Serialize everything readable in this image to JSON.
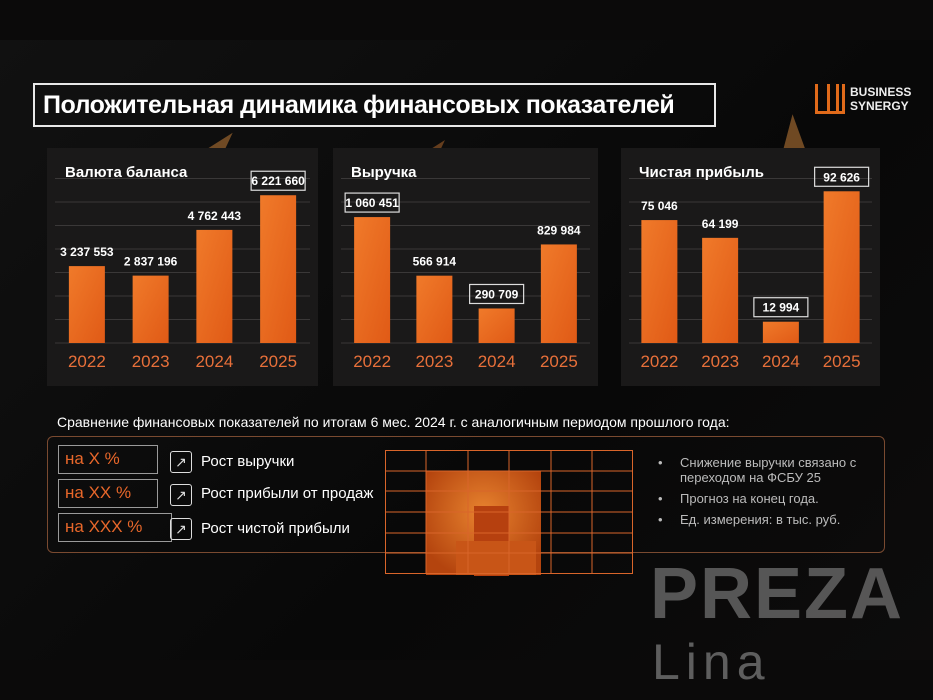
{
  "title": "Положительная динамика финансовых показателей",
  "logo": {
    "line1": "BUSINESS",
    "line2": "SYNERGY"
  },
  "colors": {
    "bar": "#e05a16",
    "bar_light": "#f07a2a",
    "year_label": "#e8703a",
    "accent": "#e8672a",
    "background": "#0b0a0a",
    "panel": "#1a1919"
  },
  "chart_data": [
    {
      "type": "bar",
      "title": "Валюта баланса",
      "categories": [
        "2022",
        "2023",
        "2024",
        "2025"
      ],
      "values": [
        3237553,
        2837196,
        4762443,
        6221660
      ],
      "labels": [
        "3 237 553",
        "2 837 196",
        "4 762 443",
        "6 221 660"
      ],
      "highlighted": [
        false,
        false,
        false,
        true
      ],
      "ylim": [
        0,
        8000000
      ],
      "grid": true
    },
    {
      "type": "bar",
      "title": "Выручка",
      "categories": [
        "2022",
        "2023",
        "2024",
        "2025"
      ],
      "values": [
        1060451,
        566914,
        290709,
        829984
      ],
      "labels": [
        "1 060 451",
        "566 914",
        "290 709",
        "829 984"
      ],
      "highlighted": [
        true,
        false,
        true,
        false
      ],
      "ylim": [
        0,
        1600000
      ],
      "grid": true
    },
    {
      "type": "bar",
      "title": "Чистая прибыль",
      "categories": [
        "2022",
        "2023",
        "2024",
        "2025"
      ],
      "values": [
        75046,
        64199,
        12994,
        92626
      ],
      "labels": [
        "75 046",
        "64 199",
        "12 994",
        "92 626"
      ],
      "highlighted": [
        false,
        false,
        true,
        true
      ],
      "ylim": [
        0,
        116000
      ],
      "grid": true
    }
  ],
  "comparison": {
    "title": "Сравнение финансовых показателей по итогам 6 мес. 2024 г. с аналогичным периодом прошлого года:",
    "items": [
      {
        "value": "на X %",
        "label": "Рост выручки",
        "icon": "trend-up-icon"
      },
      {
        "value": "на XX %",
        "label": "Рост прибыли от продаж",
        "icon": "trend-up-icon"
      },
      {
        "value": "на XXX %",
        "label": "Рост чистой прибыли",
        "icon": "trend-up-icon"
      }
    ],
    "notes": [
      "Снижение выручки связано с переходом на ФСБУ 25",
      "Прогноз на конец года.",
      "Ед. измерения: в тыс. руб."
    ]
  },
  "watermark": {
    "line1": "PREZA",
    "line2": "Lina"
  }
}
